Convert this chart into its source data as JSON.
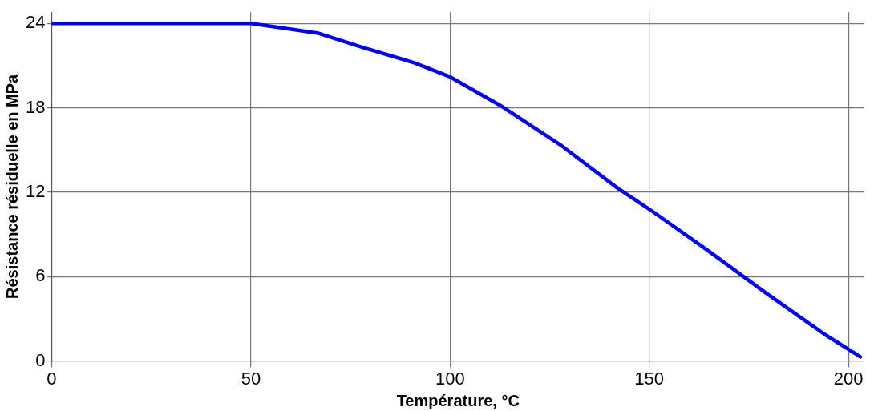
{
  "chart_data": {
    "type": "line",
    "xlabel": "Température, °C",
    "ylabel": "Résistance résiduelle en MPa",
    "series": [
      {
        "color": "#0000ee",
        "x": [
          0,
          50,
          67,
          78,
          91,
          100,
          113,
          128,
          142,
          151,
          164,
          179,
          194,
          203
        ],
        "values": [
          24,
          24,
          23.3,
          22.3,
          21.2,
          20.2,
          18.1,
          15.3,
          12.3,
          10.6,
          8.0,
          4.9,
          1.9,
          0.3
        ]
      }
    ],
    "xlim": [
      0,
      204
    ],
    "xticks": [
      0,
      50,
      100,
      150,
      200
    ],
    "ylim": [
      0,
      24.8
    ],
    "yticks": [
      0,
      6,
      12,
      18,
      24
    ],
    "grid": true,
    "legend": false,
    "marker": "none",
    "line_style": "solid"
  }
}
